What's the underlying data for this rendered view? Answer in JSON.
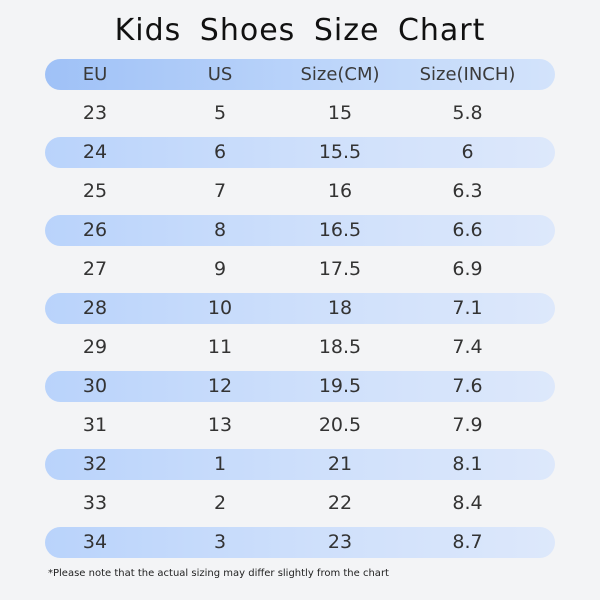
{
  "title": "Kids Shoes Size Chart",
  "headers": {
    "eu": "EU",
    "us": "US",
    "cm": "Size(CM)",
    "inch": "Size(INCH)"
  },
  "rows": [
    {
      "eu": "23",
      "us": "5",
      "cm": "15",
      "inch": "5.8"
    },
    {
      "eu": "24",
      "us": "6",
      "cm": "15.5",
      "inch": "6"
    },
    {
      "eu": "25",
      "us": "7",
      "cm": "16",
      "inch": "6.3"
    },
    {
      "eu": "26",
      "us": "8",
      "cm": "16.5",
      "inch": "6.6"
    },
    {
      "eu": "27",
      "us": "9",
      "cm": "17.5",
      "inch": "6.9"
    },
    {
      "eu": "28",
      "us": "10",
      "cm": "18",
      "inch": "7.1"
    },
    {
      "eu": "29",
      "us": "11",
      "cm": "18.5",
      "inch": "7.4"
    },
    {
      "eu": "30",
      "us": "12",
      "cm": "19.5",
      "inch": "7.6"
    },
    {
      "eu": "31",
      "us": "13",
      "cm": "20.5",
      "inch": "7.9"
    },
    {
      "eu": "32",
      "us": "1",
      "cm": "21",
      "inch": "8.1"
    },
    {
      "eu": "33",
      "us": "2",
      "cm": "22",
      "inch": "8.4"
    },
    {
      "eu": "34",
      "us": "3",
      "cm": "23",
      "inch": "8.7"
    }
  ],
  "footnote": "*Please note that the actual sizing may differ slightly from the chart",
  "colors": {
    "background": "#f3f4f6",
    "header_band": "#9fc1f7",
    "row_band": "#b9d3fb",
    "text": "#333333"
  }
}
